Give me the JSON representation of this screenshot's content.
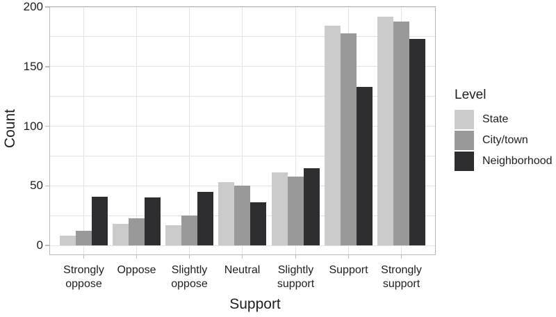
{
  "chart_data": {
    "type": "bar",
    "title": "",
    "xlabel": "Support",
    "ylabel": "Count",
    "ylim": [
      0,
      200
    ],
    "yticks": [
      0,
      50,
      100,
      150,
      200
    ],
    "minor_grid_step": 25,
    "grid": true,
    "legend": {
      "title": "Level",
      "position": "right"
    },
    "categories": [
      "Strongly\noppose",
      "Oppose",
      "Slightly\noppose",
      "Neutral",
      "Slightly\nsupport",
      "Support",
      "Strongly\nsupport"
    ],
    "series": [
      {
        "name": "State",
        "color": "#cbcbcb",
        "values": [
          8,
          18,
          17,
          53,
          61,
          184,
          192
        ]
      },
      {
        "name": "City/town",
        "color": "#999999",
        "values": [
          12,
          23,
          25,
          50,
          58,
          178,
          188
        ]
      },
      {
        "name": "Neighborhood",
        "color": "#2e2e30",
        "values": [
          41,
          40,
          45,
          36,
          65,
          133,
          173
        ]
      }
    ],
    "colors": {
      "gridline": "#e3e3e3",
      "panel_border": "#b9b9b9",
      "tick": "#bdbdbd",
      "text": "#1e1e1e"
    }
  }
}
